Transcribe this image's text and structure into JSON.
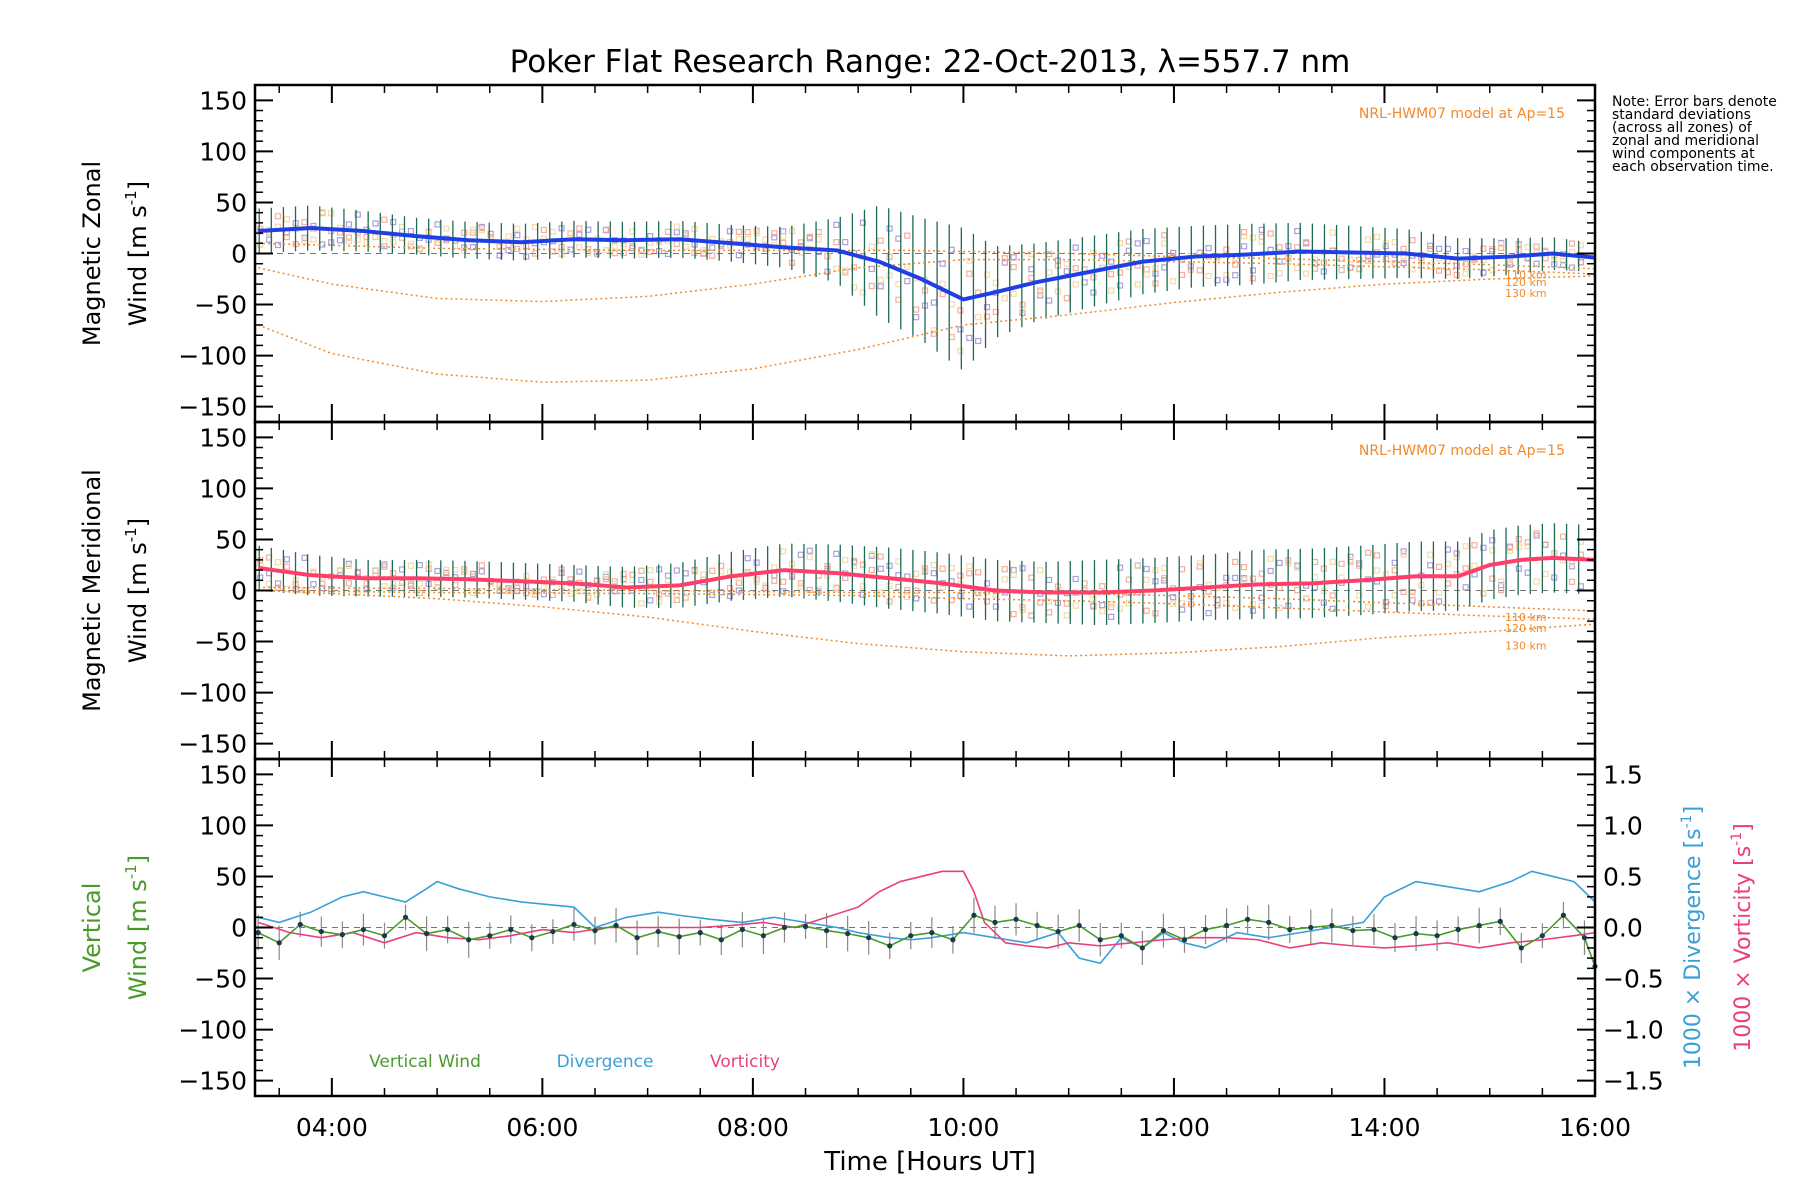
{
  "note": "Note: Error bars denote standard deviations (across all zones) of zonal and meridional wind components at each observation time.",
  "colors": {
    "zonal": "#1f3fe6",
    "zonal_err": "#1f6a55",
    "meridional": "#ff3f6a",
    "vertical": "#4a9a2a",
    "divergence": "#3a9fd8",
    "vorticity": "#e8407e",
    "model": "#f28a2a",
    "scatter_lavender": "#9b8fd6",
    "scatter_salmon": "#f4a08a"
  },
  "chart_data": {
    "title": "Poker Flat Research Range: 22-Oct-2013, λ=557.7 nm",
    "xlabel": "Time [Hours UT]",
    "x_ticks": [
      "04:00",
      "06:00",
      "08:00",
      "10:00",
      "12:00",
      "14:00",
      "16:00"
    ],
    "x_tick_values": [
      4,
      6,
      8,
      10,
      12,
      14,
      16
    ],
    "xlim": [
      3.27,
      16.0
    ],
    "panels": [
      {
        "type": "line",
        "name": "zonal",
        "ylabel_1": "Magnetic Zonal",
        "ylabel_2": "Wind [m s",
        "ylabel_sup": "-1",
        "ylabel_end": "]",
        "ylim": [
          -165,
          165
        ],
        "y_ticks": [
          "150",
          "100",
          "50",
          "0",
          "−50",
          "−100",
          "−150"
        ],
        "y_tick_values": [
          150,
          100,
          50,
          0,
          -50,
          -100,
          -150
        ],
        "model_label": "NRL-HWM07 model at Ap=15",
        "model_alt_labels": [
          "110 km",
          "120 km",
          "130 km"
        ],
        "series": [
          {
            "name": "Zonal wind",
            "x": [
              3.3,
              3.8,
              4.3,
              4.8,
              5.3,
              5.8,
              6.3,
              6.8,
              7.3,
              7.8,
              8.3,
              8.8,
              9.2,
              9.6,
              10.0,
              10.3,
              10.7,
              11.2,
              11.7,
              12.2,
              12.7,
              13.2,
              13.7,
              14.2,
              14.7,
              15.2,
              15.6,
              16.0
            ],
            "values": [
              22,
              25,
              22,
              17,
              13,
              11,
              14,
              13,
              14,
              10,
              6,
              3,
              -8,
              -25,
              -45,
              -38,
              -28,
              -18,
              -8,
              -3,
              -1,
              2,
              1,
              0,
              -5,
              -3,
              0,
              -4
            ]
          },
          {
            "name": "110 km",
            "x": [
              3.3,
              5,
              7,
              8,
              9,
              9.5,
              10,
              11,
              12,
              13,
              14,
              15,
              16
            ],
            "values": [
              10,
              5,
              3,
              3,
              3,
              3,
              2,
              0,
              -3,
              -5,
              -8,
              -11,
              -15
            ]
          },
          {
            "name": "120 km",
            "x": [
              3.3,
              4,
              5,
              6,
              7,
              8,
              9,
              10,
              11,
              12,
              13,
              14,
              15,
              16
            ],
            "values": [
              -14,
              -30,
              -44,
              -47,
              -42,
              -30,
              -14,
              -6,
              -6,
              -8,
              -10,
              -13,
              -16,
              -20
            ]
          },
          {
            "name": "130 km",
            "x": [
              3.3,
              4,
              5,
              6,
              7,
              8,
              9,
              10,
              11,
              12,
              13,
              14,
              15,
              16
            ],
            "values": [
              -70,
              -98,
              -118,
              -126,
              -124,
              -113,
              -94,
              -70,
              -60,
              -48,
              -38,
              -30,
              -25,
              -22
            ]
          }
        ],
        "error_bar_std": [
          22,
          22,
          20,
          18,
          18,
          18,
          18,
          18,
          18,
          18,
          20,
          32,
          55,
          60,
          70,
          45,
          38,
          35,
          32,
          30,
          30,
          28,
          26,
          24,
          20,
          18,
          16,
          14
        ]
      },
      {
        "type": "line",
        "name": "meridional",
        "ylabel_1": "Magnetic Meridional",
        "ylabel_2": "Wind [m s",
        "ylabel_sup": "-1",
        "ylabel_end": "]",
        "ylim": [
          -165,
          165
        ],
        "y_ticks": [
          "150",
          "100",
          "50",
          "0",
          "−50",
          "−100",
          "−150"
        ],
        "y_tick_values": [
          150,
          100,
          50,
          0,
          -50,
          -100,
          -150
        ],
        "model_label": "NRL-HWM07 model at Ap=15",
        "model_alt_labels": [
          "110 km",
          "120 km",
          "130 km"
        ],
        "series": [
          {
            "name": "Meridional wind",
            "x": [
              3.3,
              3.8,
              4.3,
              4.8,
              5.3,
              5.8,
              6.3,
              6.8,
              7.3,
              7.8,
              8.3,
              8.8,
              9.3,
              9.8,
              10.3,
              10.8,
              11.3,
              11.8,
              12.3,
              12.8,
              13.3,
              13.8,
              14.3,
              14.7,
              15.0,
              15.3,
              15.6,
              16.0
            ],
            "values": [
              22,
              15,
              12,
              12,
              11,
              9,
              7,
              3,
              5,
              14,
              20,
              17,
              12,
              7,
              0,
              -2,
              -2,
              0,
              3,
              6,
              7,
              10,
              14,
              14,
              25,
              30,
              32,
              30
            ]
          },
          {
            "name": "110 km",
            "x": [
              3.3,
              5,
              7,
              9,
              10,
              11,
              12,
              13,
              14,
              15,
              16
            ],
            "values": [
              3,
              2,
              0,
              -2,
              -2,
              -3,
              -5,
              -8,
              -12,
              -16,
              -20
            ]
          },
          {
            "name": "120 km",
            "x": [
              3.3,
              5,
              7,
              9,
              10,
              11,
              12,
              13,
              14,
              15,
              16
            ],
            "values": [
              0,
              -2,
              -3,
              -5,
              -8,
              -10,
              -13,
              -17,
              -21,
              -25,
              -28
            ]
          },
          {
            "name": "130 km",
            "x": [
              3.3,
              4,
              5,
              6,
              7,
              8,
              9,
              10,
              11,
              12,
              13,
              14,
              15,
              16
            ],
            "values": [
              0,
              -3,
              -8,
              -16,
              -26,
              -40,
              -52,
              -60,
              -64,
              -61,
              -55,
              -46,
              -40,
              -33
            ]
          }
        ],
        "error_bar_std": [
          22,
          20,
          18,
          18,
          18,
          18,
          18,
          20,
          22,
          24,
          26,
          28,
          30,
          30,
          30,
          30,
          32,
          32,
          32,
          34,
          34,
          34,
          34,
          34,
          34,
          34,
          34,
          34
        ]
      },
      {
        "type": "line",
        "name": "vertical",
        "ylabel_1": "Vertical",
        "ylabel_2": "Wind [m s",
        "ylabel_sup": "-1",
        "ylabel_end": "]",
        "ylim": [
          -165,
          165
        ],
        "y_ticks": [
          "150",
          "100",
          "50",
          "0",
          "−50",
          "−100",
          "−150"
        ],
        "y_tick_values": [
          150,
          100,
          50,
          0,
          -50,
          -100,
          -150
        ],
        "y2label_1": "1000 × Divergence [s",
        "y2label_2": "1000 × Vorticity [s",
        "y2label_sup": "-1",
        "y2label_end": "]",
        "y2lim": [
          -1.65,
          1.65
        ],
        "y2_ticks": [
          "1.5",
          "1.0",
          "0.5",
          "0.0",
          "−0.5",
          "−1.0",
          "−1.5"
        ],
        "y2_tick_values": [
          1.5,
          1.0,
          0.5,
          0.0,
          -0.5,
          -1.0,
          -1.5
        ],
        "legend": [
          "Vertical Wind",
          "Divergence",
          "Vorticity"
        ],
        "series": [
          {
            "name": "Vertical Wind",
            "axis": "left",
            "x": [
              3.3,
              3.5,
              3.7,
              3.9,
              4.1,
              4.3,
              4.5,
              4.7,
              4.9,
              5.1,
              5.3,
              5.5,
              5.7,
              5.9,
              6.1,
              6.3,
              6.5,
              6.7,
              6.9,
              7.1,
              7.3,
              7.5,
              7.7,
              7.9,
              8.1,
              8.3,
              8.5,
              8.7,
              8.9,
              9.1,
              9.3,
              9.5,
              9.7,
              9.9,
              10.1,
              10.3,
              10.5,
              10.7,
              10.9,
              11.1,
              11.3,
              11.5,
              11.7,
              11.9,
              12.1,
              12.3,
              12.5,
              12.7,
              12.9,
              13.1,
              13.3,
              13.5,
              13.7,
              13.9,
              14.1,
              14.3,
              14.5,
              14.7,
              14.9,
              15.1,
              15.3,
              15.5,
              15.7,
              15.9,
              16.0
            ],
            "values": [
              -5,
              -15,
              3,
              -4,
              -7,
              -2,
              -8,
              10,
              -6,
              -2,
              -12,
              -8,
              -2,
              -10,
              -4,
              3,
              -3,
              2,
              -10,
              -4,
              -9,
              -5,
              -12,
              -2,
              -8,
              0,
              1,
              -3,
              -6,
              -10,
              -18,
              -8,
              -5,
              -12,
              12,
              5,
              8,
              2,
              -4,
              2,
              -12,
              -8,
              -20,
              -3,
              -12,
              -2,
              2,
              8,
              5,
              -2,
              0,
              2,
              -3,
              -2,
              -10,
              -6,
              -8,
              -2,
              2,
              6,
              -20,
              -8,
              12,
              -10,
              -38
            ]
          },
          {
            "name": "Divergence",
            "axis": "right",
            "x": [
              3.3,
              3.5,
              3.8,
              4.1,
              4.3,
              4.5,
              4.7,
              4.9,
              5.0,
              5.2,
              5.5,
              5.8,
              6.1,
              6.3,
              6.5,
              6.8,
              7.1,
              7.3,
              7.6,
              7.9,
              8.2,
              8.5,
              8.8,
              9.0,
              9.3,
              9.5,
              9.7,
              10.0,
              10.3,
              10.6,
              10.9,
              11.1,
              11.3,
              11.5,
              11.7,
              11.9,
              12.1,
              12.3,
              12.6,
              12.9,
              13.2,
              13.5,
              13.8,
              14.0,
              14.3,
              14.6,
              14.9,
              15.2,
              15.4,
              15.6,
              15.8,
              16.0
            ],
            "values": [
              0.1,
              0.05,
              0.15,
              0.3,
              0.35,
              0.3,
              0.25,
              0.38,
              0.45,
              0.38,
              0.3,
              0.25,
              0.22,
              0.2,
              0.0,
              0.1,
              0.15,
              0.12,
              0.08,
              0.05,
              0.1,
              0.05,
              0.0,
              -0.05,
              -0.1,
              -0.12,
              -0.1,
              -0.05,
              -0.1,
              -0.15,
              -0.05,
              -0.3,
              -0.35,
              -0.1,
              -0.2,
              -0.05,
              -0.15,
              -0.2,
              -0.05,
              -0.1,
              -0.05,
              0.0,
              0.05,
              0.3,
              0.45,
              0.4,
              0.35,
              0.45,
              0.55,
              0.5,
              0.45,
              0.25
            ]
          },
          {
            "name": "Vorticity",
            "axis": "right",
            "x": [
              3.3,
              3.6,
              3.9,
              4.2,
              4.5,
              4.8,
              5.1,
              5.4,
              5.7,
              6.0,
              6.3,
              6.6,
              6.9,
              7.2,
              7.5,
              7.8,
              8.1,
              8.4,
              8.7,
              9.0,
              9.2,
              9.4,
              9.6,
              9.8,
              10.0,
              10.1,
              10.2,
              10.4,
              10.6,
              10.8,
              11.0,
              11.3,
              11.6,
              11.9,
              12.2,
              12.5,
              12.8,
              13.1,
              13.4,
              13.7,
              14.0,
              14.3,
              14.6,
              14.9,
              15.2,
              15.5,
              15.8,
              16.0
            ],
            "values": [
              0.05,
              -0.05,
              -0.1,
              -0.05,
              -0.15,
              -0.05,
              -0.1,
              -0.12,
              -0.08,
              -0.02,
              -0.05,
              0.0,
              0.0,
              0.0,
              0.0,
              0.02,
              0.05,
              0.0,
              0.1,
              0.2,
              0.35,
              0.45,
              0.5,
              0.55,
              0.55,
              0.35,
              0.05,
              -0.15,
              -0.18,
              -0.2,
              -0.15,
              -0.18,
              -0.15,
              -0.12,
              -0.1,
              -0.1,
              -0.12,
              -0.2,
              -0.15,
              -0.18,
              -0.2,
              -0.18,
              -0.15,
              -0.2,
              -0.15,
              -0.12,
              -0.08,
              -0.05
            ]
          }
        ],
        "error_bar_std": [
          12
        ]
      }
    ]
  }
}
